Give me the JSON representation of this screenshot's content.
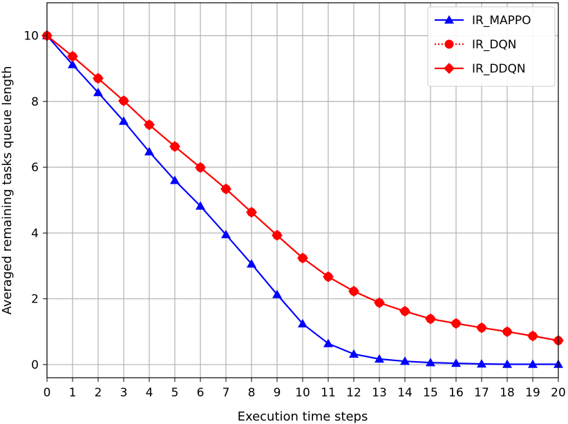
{
  "chart_data": {
    "type": "line",
    "xlabel": "Execution time steps",
    "ylabel": "Averaged remaining tasks queue length",
    "xlim": [
      0,
      20
    ],
    "ylim": [
      -0.4,
      11.0
    ],
    "xticks": [
      0,
      1,
      2,
      3,
      4,
      5,
      6,
      7,
      8,
      9,
      10,
      11,
      12,
      13,
      14,
      15,
      16,
      17,
      18,
      19,
      20
    ],
    "yticks": [
      0,
      2,
      4,
      6,
      8,
      10
    ],
    "grid": true,
    "legend_position": "top-right",
    "x": [
      0,
      1,
      2,
      3,
      4,
      5,
      6,
      7,
      8,
      9,
      10,
      11,
      12,
      13,
      14,
      15,
      16,
      17,
      18,
      19,
      20
    ],
    "series": [
      {
        "name": "IR_MAPPO",
        "color": "#0000ff",
        "marker": "triangle",
        "linestyle": "solid",
        "values": [
          10.0,
          9.12,
          8.27,
          7.4,
          6.47,
          5.6,
          4.82,
          3.95,
          3.06,
          2.13,
          1.24,
          0.64,
          0.32,
          0.17,
          0.1,
          0.06,
          0.04,
          0.02,
          0.01,
          0.01,
          0.01
        ]
      },
      {
        "name": "IR_DQN",
        "color": "#ff0000",
        "marker": "circle",
        "linestyle": "dotted",
        "values": [
          10.0,
          9.37,
          8.7,
          8.02,
          7.29,
          6.63,
          5.99,
          5.34,
          4.63,
          3.93,
          3.24,
          2.67,
          2.23,
          1.88,
          1.62,
          1.39,
          1.25,
          1.12,
          1.0,
          0.87,
          0.73
        ]
      },
      {
        "name": "IR_DDQN",
        "color": "#ff0000",
        "marker": "diamond",
        "linestyle": "solid",
        "values": [
          10.0,
          9.37,
          8.7,
          8.02,
          7.29,
          6.63,
          5.99,
          5.34,
          4.63,
          3.93,
          3.24,
          2.67,
          2.23,
          1.88,
          1.62,
          1.39,
          1.25,
          1.12,
          1.0,
          0.87,
          0.73
        ]
      }
    ]
  }
}
